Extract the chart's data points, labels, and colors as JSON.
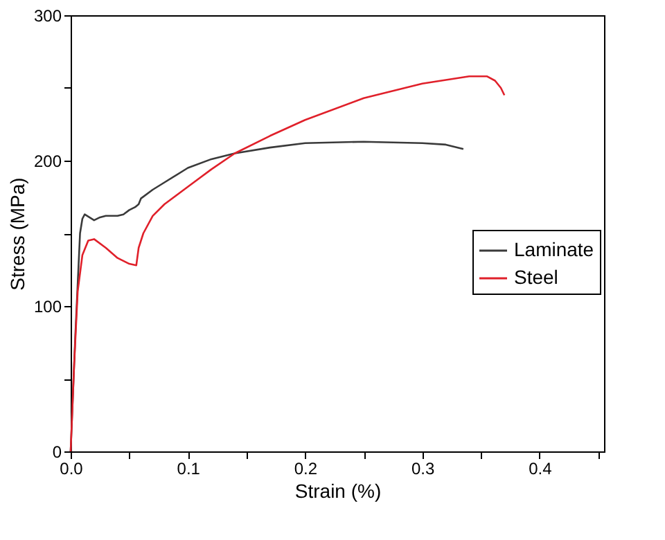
{
  "chart_data": {
    "type": "line",
    "xlabel": "Strain (%)",
    "ylabel": "Stress (MPa)",
    "xlim": [
      0,
      0.455
    ],
    "ylim": [
      0,
      300
    ],
    "xticks": [
      {
        "value": 0,
        "label": "0.0"
      },
      {
        "value": 0.05,
        "label": null
      },
      {
        "value": 0.1,
        "label": "0.1"
      },
      {
        "value": 0.15,
        "label": null
      },
      {
        "value": 0.2,
        "label": "0.2"
      },
      {
        "value": 0.25,
        "label": null
      },
      {
        "value": 0.3,
        "label": "0.3"
      },
      {
        "value": 0.35,
        "label": null
      },
      {
        "value": 0.4,
        "label": "0.4"
      },
      {
        "value": 0.45,
        "label": null
      }
    ],
    "yticks": [
      0,
      {
        "value": 50,
        "label": null
      },
      100,
      {
        "value": 150,
        "label": null
      },
      200,
      {
        "value": 250,
        "label": null
      },
      300
    ],
    "grid": false,
    "legend": "right",
    "marker": "none",
    "line_style": "solid",
    "series": [
      {
        "name": "Laminate",
        "color": "#3a3a3a",
        "x": [
          0,
          0.004,
          0.008,
          0.01,
          0.012,
          0.016,
          0.02,
          0.025,
          0.03,
          0.04,
          0.045,
          0.05,
          0.055,
          0.058,
          0.06,
          0.07,
          0.08,
          0.1,
          0.12,
          0.14,
          0.17,
          0.2,
          0.25,
          0.3,
          0.32,
          0.335
        ],
        "values": [
          0,
          80,
          150,
          160,
          163,
          161,
          159,
          161,
          162,
          162,
          163,
          166,
          168,
          170,
          174,
          180,
          185,
          195,
          201,
          205,
          209,
          212,
          213,
          212,
          211,
          208
        ]
      },
      {
        "name": "Steel",
        "color": "#e0202a",
        "x": [
          0,
          0.003,
          0.006,
          0.01,
          0.015,
          0.02,
          0.03,
          0.04,
          0.05,
          0.056,
          0.058,
          0.062,
          0.07,
          0.08,
          0.1,
          0.12,
          0.14,
          0.17,
          0.2,
          0.25,
          0.3,
          0.34,
          0.355,
          0.362,
          0.367,
          0.37
        ],
        "values": [
          0,
          60,
          110,
          135,
          145,
          146,
          140,
          133,
          129,
          128,
          140,
          150,
          162,
          170,
          182,
          194,
          205,
          217,
          228,
          243,
          253,
          258,
          258,
          255,
          250,
          245
        ]
      }
    ]
  }
}
